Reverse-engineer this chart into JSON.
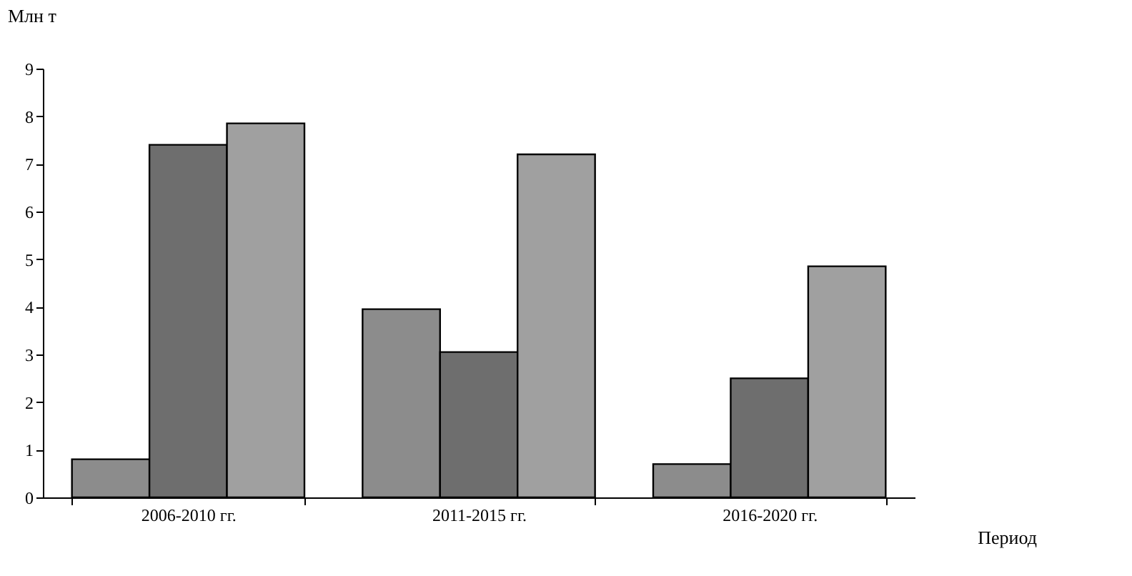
{
  "chart_data": {
    "type": "bar",
    "ylabel": "Млн т",
    "xlabel": "Период",
    "categories": [
      "2006-2010 гг.",
      "2011-2015 гг.",
      "2016-2020 гг."
    ],
    "series": [
      {
        "color": "#8c8c8c",
        "values": [
          0.8,
          3.95,
          0.7
        ]
      },
      {
        "color": "#6e6e6e",
        "values": [
          7.4,
          3.05,
          2.5
        ]
      },
      {
        "color": "#a0a0a0",
        "values": [
          7.85,
          7.2,
          4.85
        ]
      }
    ],
    "ylim": [
      0,
      9
    ],
    "yticks": [
      0,
      1,
      2,
      3,
      4,
      5,
      6,
      7,
      8,
      9
    ],
    "grid": false,
    "legend": false
  }
}
